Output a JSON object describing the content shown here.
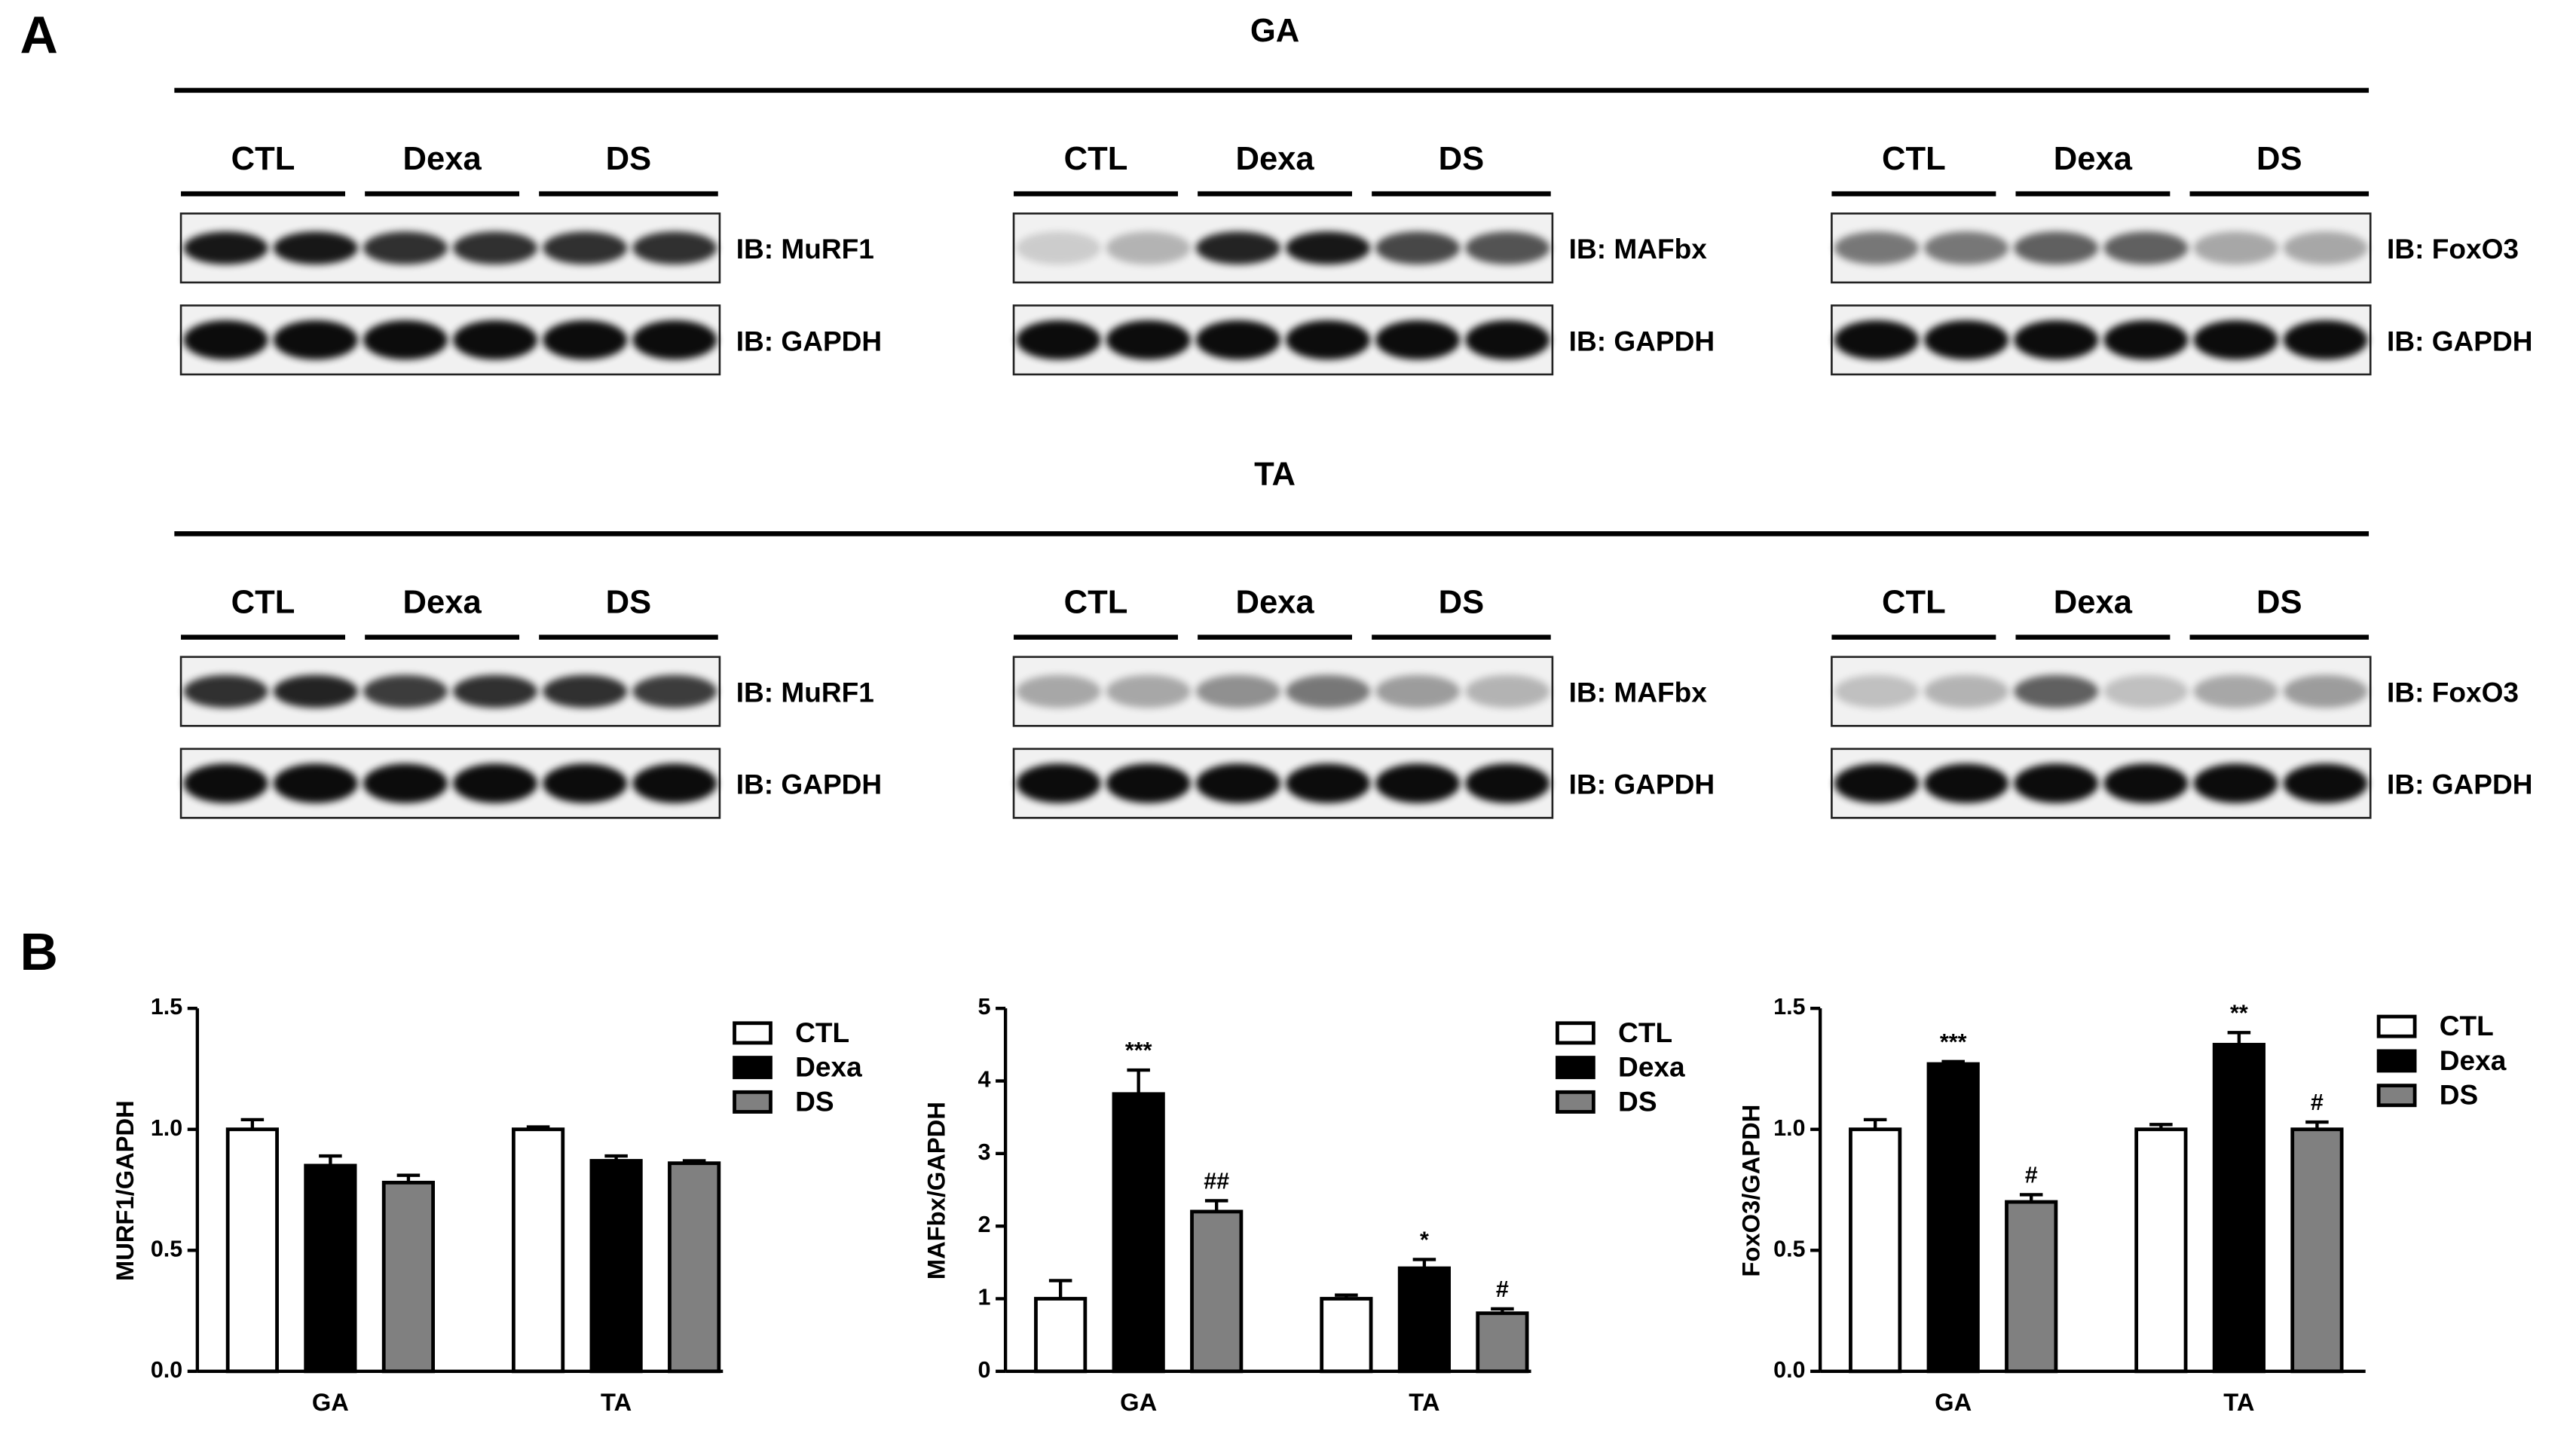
{
  "panel_a": {
    "label": "A",
    "sections": [
      {
        "title": "GA",
        "blots": [
          {
            "groups": [
              "CTL",
              "Dexa",
              "DS"
            ],
            "rows": [
              "IB: MuRF1",
              "IB: GAPDH"
            ]
          },
          {
            "groups": [
              "CTL",
              "Dexa",
              "DS"
            ],
            "rows": [
              "IB: MAFbx",
              "IB: GAPDH"
            ]
          },
          {
            "groups": [
              "CTL",
              "Dexa",
              "DS"
            ],
            "rows": [
              "IB: FoxO3",
              "IB: GAPDH"
            ]
          }
        ]
      },
      {
        "title": "TA",
        "blots": [
          {
            "groups": [
              "CTL",
              "Dexa",
              "DS"
            ],
            "rows": [
              "IB: MuRF1",
              "IB: GAPDH"
            ]
          },
          {
            "groups": [
              "CTL",
              "Dexa",
              "DS"
            ],
            "rows": [
              "IB: MAFbx",
              "IB: GAPDH"
            ]
          },
          {
            "groups": [
              "CTL",
              "Dexa",
              "DS"
            ],
            "rows": [
              "IB: FoxO3",
              "IB: GAPDH"
            ]
          }
        ]
      }
    ]
  },
  "panel_b_label": "B",
  "chart_data": [
    {
      "type": "bar",
      "y_label": "MURF1/GAPDH",
      "categories": [
        "GA",
        "TA"
      ],
      "ylim": [
        0,
        1.5
      ],
      "yticks": [
        {
          "value": 0,
          "label": "0.0"
        },
        0.5,
        {
          "value": 1,
          "label": "1.0"
        },
        1.5
      ],
      "series": [
        {
          "name": "CTL",
          "color": "#ffffff",
          "values": [
            1.0,
            1.0
          ],
          "errors": [
            0.04,
            0.01
          ],
          "annotations": [
            null,
            null
          ]
        },
        {
          "name": "Dexa",
          "color": "#000000",
          "values": [
            0.85,
            0.87
          ],
          "errors": [
            0.04,
            0.02
          ],
          "annotations": [
            null,
            null
          ]
        },
        {
          "name": "DS",
          "color": "#808080",
          "values": [
            0.78,
            0.86
          ],
          "errors": [
            0.03,
            0.01
          ],
          "annotations": [
            null,
            null
          ]
        }
      ]
    },
    {
      "type": "bar",
      "y_label": "MAFbx/GAPDH",
      "categories": [
        "GA",
        "TA"
      ],
      "ylim": [
        0,
        5
      ],
      "yticks": [
        0,
        1,
        2,
        3,
        4,
        5
      ],
      "series": [
        {
          "name": "CTL",
          "color": "#ffffff",
          "values": [
            1.0,
            1.0
          ],
          "errors": [
            0.25,
            0.05
          ],
          "annotations": [
            null,
            null
          ]
        },
        {
          "name": "Dexa",
          "color": "#000000",
          "values": [
            3.82,
            1.42
          ],
          "errors": [
            0.33,
            0.12
          ],
          "annotations": [
            "***",
            "*"
          ]
        },
        {
          "name": "DS",
          "color": "#808080",
          "values": [
            2.2,
            0.8
          ],
          "errors": [
            0.15,
            0.06
          ],
          "annotations": [
            "##",
            "#"
          ]
        }
      ]
    },
    {
      "type": "bar",
      "y_label": "FoxO3/GAPDH",
      "categories": [
        "GA",
        "TA"
      ],
      "ylim": [
        0,
        1.5
      ],
      "yticks": [
        {
          "value": 0,
          "label": "0.0"
        },
        0.5,
        {
          "value": 1,
          "label": "1.0"
        },
        1.5
      ],
      "series": [
        {
          "name": "CTL",
          "color": "#ffffff",
          "values": [
            1.0,
            1.0
          ],
          "errors": [
            0.04,
            0.02
          ],
          "annotations": [
            null,
            null
          ]
        },
        {
          "name": "Dexa",
          "color": "#000000",
          "values": [
            1.27,
            1.35
          ],
          "errors": [
            0.01,
            0.05
          ],
          "annotations": [
            "***",
            "**"
          ]
        },
        {
          "name": "DS",
          "color": "#808080",
          "values": [
            0.7,
            1.0
          ],
          "errors": [
            0.03,
            0.03
          ],
          "annotations": [
            "#",
            "#"
          ]
        }
      ]
    }
  ]
}
